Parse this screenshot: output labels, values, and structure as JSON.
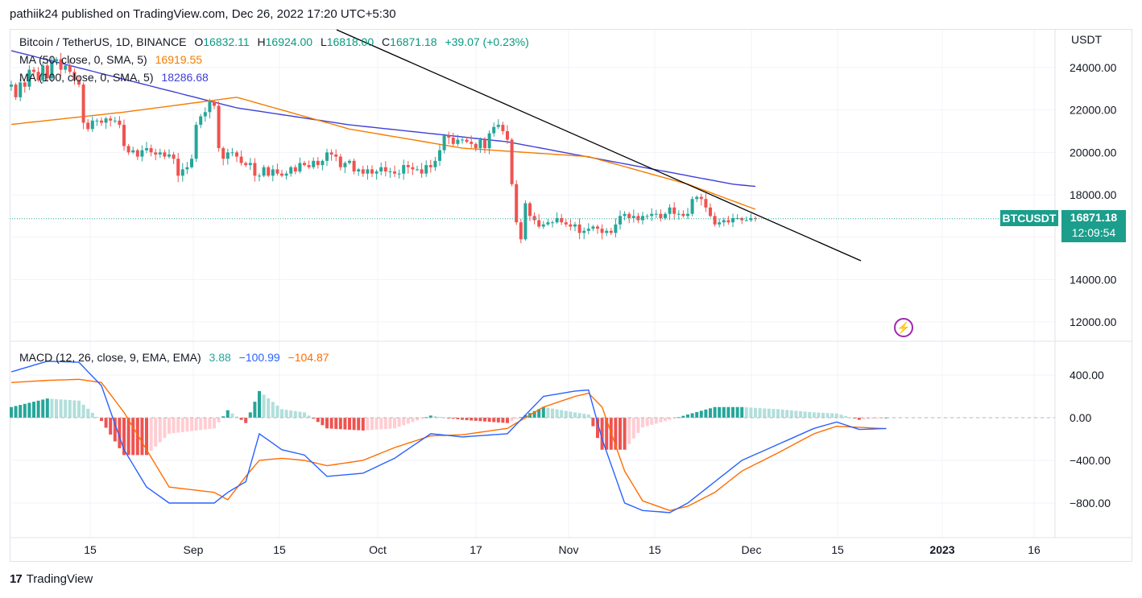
{
  "header": {
    "publish_line": "pathiik24 published on TradingView.com, Dec 26, 2022 17:20 UTC+5:30"
  },
  "legend": {
    "symbol": "Bitcoin / TetherUS, 1D, BINANCE",
    "o_label": "O",
    "o": "16832.11",
    "h_label": "H",
    "h": "16924.00",
    "l_label": "L",
    "l": "16818.00",
    "c_label": "C",
    "c": "16871.18",
    "change": "+39.07 (+0.23%)",
    "ma50_label": "MA (50, close, 0, SMA, 5)",
    "ma50_value": "16919.55",
    "ma100_label": "MA (100, close, 0, SMA, 5)",
    "ma100_value": "18286.68",
    "macd_label": "MACD (12, 26, close, 9, EMA, EMA)",
    "macd_hist": "3.88",
    "macd_line": "−100.99",
    "macd_signal": "−104.87"
  },
  "price_axis": {
    "unit": "USDT",
    "ticks": [
      "24000.00",
      "22000.00",
      "20000.00",
      "18000.00",
      "16000.00",
      "14000.00",
      "12000.00"
    ]
  },
  "macd_axis": {
    "ticks": [
      "400.00",
      "0.00",
      "−400.00",
      "−800.00"
    ]
  },
  "time_axis": {
    "ticks": [
      "15",
      "Sep",
      "15",
      "Oct",
      "17",
      "Nov",
      "15",
      "Dec",
      "15",
      "2023",
      "16"
    ]
  },
  "last_price": {
    "symbol_tag": "BTCUSDT",
    "price": "16871.18",
    "countdown": "12:09:54"
  },
  "footer": {
    "brand": "TradingView"
  },
  "colors": {
    "up": "#26a69a",
    "down": "#ef5350",
    "ma50": "#f57c00",
    "ma100": "#3f3fd8",
    "macd": "#2962ff",
    "signal": "#ff6d00",
    "hist_up_strong": "#26a69a",
    "hist_up_weak": "#b2dfdb",
    "hist_down_strong": "#ef5350",
    "hist_down_weak": "#ffcdd2",
    "trendline": "#000000"
  },
  "chart_data": [
    {
      "type": "candlestick",
      "title": "Bitcoin / TetherUS, 1D, BINANCE",
      "ylabel": "USDT",
      "ylim": [
        11500,
        24800
      ],
      "x_start": "2022-08-04",
      "x_end": "2022-12-26",
      "close": [
        23200,
        22600,
        23300,
        23100,
        23900,
        23800,
        23400,
        24100,
        23500,
        24300,
        24400,
        23900,
        24100,
        23800,
        23400,
        23200,
        21400,
        21100,
        21500,
        21500,
        21400,
        21600,
        21500,
        21500,
        21300,
        20300,
        20000,
        20100,
        19800,
        20100,
        20200,
        20000,
        19900,
        20000,
        19800,
        19900,
        19700,
        18900,
        19200,
        19300,
        19700,
        21300,
        21700,
        21900,
        22400,
        22200,
        20200,
        19700,
        20000,
        20000,
        19800,
        19500,
        19400,
        19500,
        18900,
        18900,
        19300,
        18900,
        19200,
        19000,
        18900,
        19000,
        19300,
        19100,
        19500,
        19400,
        19300,
        19600,
        19400,
        19600,
        20000,
        19900,
        19800,
        19300,
        19500,
        19600,
        19100,
        19200,
        19000,
        19200,
        19000,
        19100,
        19300,
        19100,
        19100,
        19000,
        19000,
        19400,
        19300,
        19200,
        19200,
        19000,
        19400,
        19300,
        19600,
        20100,
        20800,
        20700,
        20400,
        20600,
        20600,
        20500,
        20400,
        20200,
        20600,
        20200,
        20900,
        21200,
        21300,
        21000,
        20600,
        18500,
        16700,
        15900,
        17600,
        17000,
        16800,
        16500,
        16600,
        16700,
        16700,
        16900,
        16700,
        16600,
        16500,
        16600,
        16200,
        16300,
        16400,
        16500,
        16400,
        16200,
        16300,
        16200,
        16600,
        17000,
        17100,
        16900,
        17000,
        16800,
        17000,
        17000,
        17100,
        17100,
        16900,
        17100,
        17400,
        17100,
        17100,
        17000,
        17100,
        17800,
        17900,
        17800,
        17400,
        17000,
        16600,
        16700,
        16800,
        16700,
        16900,
        16900,
        16800,
        16800,
        16900,
        16871.18
      ]
    },
    {
      "type": "line",
      "title": "MA (50, close, 0, SMA, 5)",
      "values_at_anchors": [
        [
          0,
          21320
        ],
        [
          25,
          21900
        ],
        [
          50,
          22600
        ],
        [
          75,
          21100
        ],
        [
          100,
          20200
        ],
        [
          128,
          19800
        ],
        [
          150,
          18500
        ],
        [
          170,
          16919.55
        ]
      ]
    },
    {
      "type": "line",
      "title": "MA (100, close, 0, SMA, 5)",
      "values_at_anchors": [
        [
          0,
          24800
        ],
        [
          50,
          22100
        ],
        [
          75,
          21300
        ],
        [
          110,
          20500
        ],
        [
          135,
          19500
        ],
        [
          160,
          18500
        ],
        [
          170,
          18286.68
        ]
      ]
    },
    {
      "type": "bar",
      "title": "MACD (12, 26, close, 9, EMA, EMA)",
      "ylim": [
        -950,
        600
      ],
      "macd_line_anchors": [
        [
          0,
          430
        ],
        [
          8,
          530
        ],
        [
          15,
          520
        ],
        [
          20,
          300
        ],
        [
          25,
          -300
        ],
        [
          30,
          -650
        ],
        [
          35,
          -800
        ],
        [
          45,
          -800
        ],
        [
          48,
          -700
        ],
        [
          52,
          -600
        ],
        [
          55,
          -150
        ],
        [
          60,
          -300
        ],
        [
          65,
          -350
        ],
        [
          70,
          -550
        ],
        [
          78,
          -520
        ],
        [
          85,
          -380
        ],
        [
          93,
          -150
        ],
        [
          100,
          -180
        ],
        [
          110,
          -150
        ],
        [
          118,
          200
        ],
        [
          125,
          250
        ],
        [
          128,
          260
        ],
        [
          131,
          -200
        ],
        [
          136,
          -800
        ],
        [
          140,
          -870
        ],
        [
          146,
          -890
        ],
        [
          150,
          -800
        ],
        [
          156,
          -600
        ],
        [
          162,
          -400
        ],
        [
          170,
          -250
        ],
        [
          178,
          -100
        ],
        [
          183,
          -40
        ],
        [
          188,
          -110
        ],
        [
          195,
          -100
        ]
      ],
      "signal_anchors": [
        [
          0,
          330
        ],
        [
          8,
          350
        ],
        [
          15,
          360
        ],
        [
          20,
          330
        ],
        [
          25,
          50
        ],
        [
          30,
          -300
        ],
        [
          35,
          -650
        ],
        [
          45,
          -700
        ],
        [
          48,
          -770
        ],
        [
          52,
          -550
        ],
        [
          55,
          -400
        ],
        [
          60,
          -380
        ],
        [
          65,
          -400
        ],
        [
          70,
          -450
        ],
        [
          78,
          -400
        ],
        [
          85,
          -280
        ],
        [
          93,
          -170
        ],
        [
          100,
          -160
        ],
        [
          110,
          -100
        ],
        [
          118,
          100
        ],
        [
          125,
          200
        ],
        [
          128,
          230
        ],
        [
          131,
          100
        ],
        [
          136,
          -500
        ],
        [
          140,
          -780
        ],
        [
          146,
          -870
        ],
        [
          150,
          -830
        ],
        [
          156,
          -700
        ],
        [
          162,
          -500
        ],
        [
          170,
          -330
        ],
        [
          178,
          -150
        ],
        [
          183,
          -80
        ],
        [
          188,
          -90
        ],
        [
          195,
          -104.87
        ]
      ]
    }
  ]
}
